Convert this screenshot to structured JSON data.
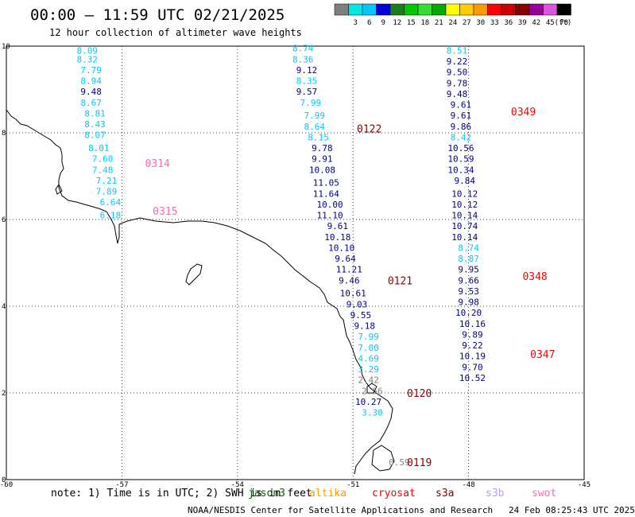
{
  "header": {
    "title": "00:00 – 11:59 UTC 02/21/2025",
    "subtitle": "12 hour collection of altimeter wave heights"
  },
  "legend": {
    "unit": "(ft)",
    "steps": [
      {
        "label": "",
        "color": "#7f7f7f"
      },
      {
        "label": "3",
        "color": "#00e5e5"
      },
      {
        "label": "6",
        "color": "#00c8ff"
      },
      {
        "label": "9",
        "color": "#0000dd"
      },
      {
        "label": "12",
        "color": "#1a7f1a"
      },
      {
        "label": "15",
        "color": "#00c800"
      },
      {
        "label": "18",
        "color": "#33dd33"
      },
      {
        "label": "21",
        "color": "#00aa00"
      },
      {
        "label": "24",
        "color": "#ffff00"
      },
      {
        "label": "27",
        "color": "#ffcc00"
      },
      {
        "label": "30",
        "color": "#ff9900"
      },
      {
        "label": "33",
        "color": "#ff0000"
      },
      {
        "label": "36",
        "color": "#cc0000"
      },
      {
        "label": "39",
        "color": "#880000"
      },
      {
        "label": "42",
        "color": "#990099"
      },
      {
        "label": "45",
        "color": "#dd55dd"
      },
      {
        "label": "70",
        "color": "#000000"
      }
    ]
  },
  "axes": {
    "x_ticks": [
      "-60",
      "-57",
      "-54",
      "-51",
      "-48",
      "-45"
    ],
    "y_ticks": [
      "0",
      "2",
      "4",
      "6",
      "8",
      "10"
    ],
    "lon_range": [
      -60,
      -45
    ],
    "lat_range": [
      0,
      10
    ]
  },
  "colors": {
    "grey": "#7f7f7f",
    "cyan": "#00c8ff",
    "navy": "#00008b",
    "dark_red": "#8b0000",
    "red": "#ff0000",
    "pink": "#ff69b4"
  },
  "passes": [
    {
      "label": "0314",
      "color": "#ff69b4",
      "lon": -56.4,
      "lat": 7.3
    },
    {
      "label": "0315",
      "color": "#ff69b4",
      "lon": -56.2,
      "lat": 6.2
    },
    {
      "label": "0122",
      "color": "#8b0000",
      "lon": -50.9,
      "lat": 8.1
    },
    {
      "label": "0121",
      "color": "#8b0000",
      "lon": -50.1,
      "lat": 4.6
    },
    {
      "label": "0120",
      "color": "#8b0000",
      "lon": -49.6,
      "lat": 2.0
    },
    {
      "label": "0119",
      "color": "#8b0000",
      "lon": -49.6,
      "lat": 0.4
    },
    {
      "label": "0349",
      "color": "#ff0000",
      "lon": -46.9,
      "lat": 8.5
    },
    {
      "label": "0348",
      "color": "#ff0000",
      "lon": -46.6,
      "lat": 4.7
    },
    {
      "label": "0347",
      "color": "#ff0000",
      "lon": -46.4,
      "lat": 2.9
    }
  ],
  "tracks": [
    {
      "values": [
        {
          "v": "8.09",
          "c": "cyan",
          "lon": -57.9,
          "lat": 9.9
        },
        {
          "v": "8.32",
          "c": "cyan",
          "lon": -57.9,
          "lat": 9.7
        },
        {
          "v": "7.79",
          "c": "cyan",
          "lon": -57.8,
          "lat": 9.45
        },
        {
          "v": "8.94",
          "c": "cyan",
          "lon": -57.8,
          "lat": 9.2
        },
        {
          "v": "9.48",
          "c": "navy",
          "lon": -57.8,
          "lat": 8.95
        },
        {
          "v": "8.67",
          "c": "cyan",
          "lon": -57.8,
          "lat": 8.7
        },
        {
          "v": "8.81",
          "c": "cyan",
          "lon": -57.7,
          "lat": 8.45
        },
        {
          "v": "8.43",
          "c": "cyan",
          "lon": -57.7,
          "lat": 8.2
        },
        {
          "v": "8.07",
          "c": "cyan",
          "lon": -57.7,
          "lat": 7.95
        },
        {
          "v": "8.01",
          "c": "cyan",
          "lon": -57.6,
          "lat": 7.65
        },
        {
          "v": "7.60",
          "c": "cyan",
          "lon": -57.5,
          "lat": 7.4
        },
        {
          "v": "7.48",
          "c": "cyan",
          "lon": -57.5,
          "lat": 7.15
        },
        {
          "v": "7.21",
          "c": "cyan",
          "lon": -57.4,
          "lat": 6.9
        },
        {
          "v": "7.89",
          "c": "cyan",
          "lon": -57.4,
          "lat": 6.65
        },
        {
          "v": "6.64",
          "c": "cyan",
          "lon": -57.3,
          "lat": 6.4
        },
        {
          "v": "6.18",
          "c": "cyan",
          "lon": -57.3,
          "lat": 6.1
        }
      ]
    },
    {
      "values": [
        {
          "v": "8.74",
          "c": "cyan",
          "lon": -52.3,
          "lat": 9.95
        },
        {
          "v": "8.36",
          "c": "cyan",
          "lon": -52.3,
          "lat": 9.7
        },
        {
          "v": "9.12",
          "c": "navy",
          "lon": -52.2,
          "lat": 9.45
        },
        {
          "v": "8.35",
          "c": "cyan",
          "lon": -52.2,
          "lat": 9.2
        },
        {
          "v": "9.57",
          "c": "navy",
          "lon": -52.2,
          "lat": 8.95
        },
        {
          "v": "7.99",
          "c": "cyan",
          "lon": -52.1,
          "lat": 8.7
        },
        {
          "v": "7.99",
          "c": "cyan",
          "lon": -52.0,
          "lat": 8.4
        },
        {
          "v": "8.64",
          "c": "cyan",
          "lon": -52.0,
          "lat": 8.15
        },
        {
          "v": "8.15",
          "c": "cyan",
          "lon": -51.9,
          "lat": 7.9
        },
        {
          "v": "9.78",
          "c": "navy",
          "lon": -51.8,
          "lat": 7.65
        },
        {
          "v": "9.91",
          "c": "navy",
          "lon": -51.8,
          "lat": 7.4
        },
        {
          "v": "10.08",
          "c": "navy",
          "lon": -51.8,
          "lat": 7.15
        },
        {
          "v": "11.05",
          "c": "navy",
          "lon": -51.7,
          "lat": 6.85
        },
        {
          "v": "11.64",
          "c": "navy",
          "lon": -51.7,
          "lat": 6.6
        },
        {
          "v": "10.00",
          "c": "navy",
          "lon": -51.6,
          "lat": 6.35
        },
        {
          "v": "11.10",
          "c": "navy",
          "lon": -51.6,
          "lat": 6.1
        },
        {
          "v": "9.61",
          "c": "navy",
          "lon": -51.4,
          "lat": 5.85
        },
        {
          "v": "10.18",
          "c": "navy",
          "lon": -51.4,
          "lat": 5.6
        },
        {
          "v": "10.10",
          "c": "navy",
          "lon": -51.3,
          "lat": 5.35
        },
        {
          "v": "9.64",
          "c": "navy",
          "lon": -51.2,
          "lat": 5.1
        },
        {
          "v": "11.21",
          "c": "navy",
          "lon": -51.1,
          "lat": 4.85
        },
        {
          "v": "9.46",
          "c": "navy",
          "lon": -51.1,
          "lat": 4.6
        },
        {
          "v": "10.61",
          "c": "navy",
          "lon": -51.0,
          "lat": 4.3
        },
        {
          "v": "9.03",
          "c": "navy",
          "lon": -50.9,
          "lat": 4.05
        },
        {
          "v": "9.55",
          "c": "navy",
          "lon": -50.8,
          "lat": 3.8
        },
        {
          "v": "9.18",
          "c": "navy",
          "lon": -50.7,
          "lat": 3.55
        },
        {
          "v": "7.99",
          "c": "cyan",
          "lon": -50.6,
          "lat": 3.3
        },
        {
          "v": "7.00",
          "c": "cyan",
          "lon": -50.6,
          "lat": 3.05
        },
        {
          "v": "4.69",
          "c": "cyan",
          "lon": -50.6,
          "lat": 2.8
        },
        {
          "v": "3.29",
          "c": "cyan",
          "lon": -50.6,
          "lat": 2.55
        },
        {
          "v": "2.42",
          "c": "grey",
          "lon": -50.6,
          "lat": 2.3
        },
        {
          "v": "2.56",
          "c": "grey",
          "lon": -50.5,
          "lat": 2.05
        },
        {
          "v": "10.27",
          "c": "navy",
          "lon": -50.6,
          "lat": 1.8
        },
        {
          "v": "3.30",
          "c": "cyan",
          "lon": -50.5,
          "lat": 1.55
        }
      ]
    },
    {
      "values": [
        {
          "v": "0.59",
          "c": "grey",
          "lon": -49.8,
          "lat": 0.4
        }
      ]
    },
    {
      "values": [
        {
          "v": "8.51",
          "c": "cyan",
          "lon": -48.3,
          "lat": 9.9
        },
        {
          "v": "9.22",
          "c": "navy",
          "lon": -48.3,
          "lat": 9.65
        },
        {
          "v": "9.50",
          "c": "navy",
          "lon": -48.3,
          "lat": 9.4
        },
        {
          "v": "9.78",
          "c": "navy",
          "lon": -48.3,
          "lat": 9.15
        },
        {
          "v": "9.48",
          "c": "navy",
          "lon": -48.3,
          "lat": 8.9
        },
        {
          "v": "9.61",
          "c": "navy",
          "lon": -48.2,
          "lat": 8.65
        },
        {
          "v": "9.61",
          "c": "navy",
          "lon": -48.2,
          "lat": 8.4
        },
        {
          "v": "9.86",
          "c": "navy",
          "lon": -48.2,
          "lat": 8.15
        },
        {
          "v": "8.42",
          "c": "cyan",
          "lon": -48.2,
          "lat": 7.9
        },
        {
          "v": "10.56",
          "c": "navy",
          "lon": -48.2,
          "lat": 7.65
        },
        {
          "v": "10.59",
          "c": "navy",
          "lon": -48.2,
          "lat": 7.4
        },
        {
          "v": "10.34",
          "c": "navy",
          "lon": -48.2,
          "lat": 7.15
        },
        {
          "v": "9.84",
          "c": "navy",
          "lon": -48.1,
          "lat": 6.9
        },
        {
          "v": "10.12",
          "c": "navy",
          "lon": -48.1,
          "lat": 6.6
        },
        {
          "v": "10.12",
          "c": "navy",
          "lon": -48.1,
          "lat": 6.35
        },
        {
          "v": "10.14",
          "c": "navy",
          "lon": -48.1,
          "lat": 6.1
        },
        {
          "v": "10.74",
          "c": "navy",
          "lon": -48.1,
          "lat": 5.85
        },
        {
          "v": "10.14",
          "c": "navy",
          "lon": -48.1,
          "lat": 5.6
        },
        {
          "v": "8.74",
          "c": "cyan",
          "lon": -48.0,
          "lat": 5.35
        },
        {
          "v": "8.87",
          "c": "cyan",
          "lon": -48.0,
          "lat": 5.1
        },
        {
          "v": "9.95",
          "c": "navy",
          "lon": -48.0,
          "lat": 4.85
        },
        {
          "v": "9.66",
          "c": "navy",
          "lon": -48.0,
          "lat": 4.6
        },
        {
          "v": "9.53",
          "c": "navy",
          "lon": -48.0,
          "lat": 4.35
        },
        {
          "v": "9.98",
          "c": "navy",
          "lon": -48.0,
          "lat": 4.1
        },
        {
          "v": "10.20",
          "c": "navy",
          "lon": -48.0,
          "lat": 3.85
        },
        {
          "v": "10.16",
          "c": "navy",
          "lon": -47.9,
          "lat": 3.6
        },
        {
          "v": "9.89",
          "c": "navy",
          "lon": -47.9,
          "lat": 3.35
        },
        {
          "v": "9.22",
          "c": "navy",
          "lon": -47.9,
          "lat": 3.1
        },
        {
          "v": "10.19",
          "c": "navy",
          "lon": -47.9,
          "lat": 2.85
        },
        {
          "v": "9.70",
          "c": "navy",
          "lon": -47.9,
          "lat": 2.6
        },
        {
          "v": "10.52",
          "c": "navy",
          "lon": -47.9,
          "lat": 2.35
        }
      ]
    }
  ],
  "note": {
    "text": "note: 1) Time is in UTC; 2) SWH is in feet",
    "satellites": [
      {
        "name": "jason3",
        "color": "#006400"
      },
      {
        "name": "altika",
        "color": "#ff9900"
      },
      {
        "name": "cryosat",
        "color": "#ff0000"
      },
      {
        "name": "s3a",
        "color": "#8b0000"
      },
      {
        "name": "s3b",
        "color": "#b8a0e0"
      },
      {
        "name": "swot",
        "color": "#ff69b4"
      }
    ]
  },
  "footer": {
    "credit": "NOAA/NESDIS Center for Satellite Applications and Research",
    "timestamp": "24 Feb 08:25:43 UTC 2025"
  }
}
